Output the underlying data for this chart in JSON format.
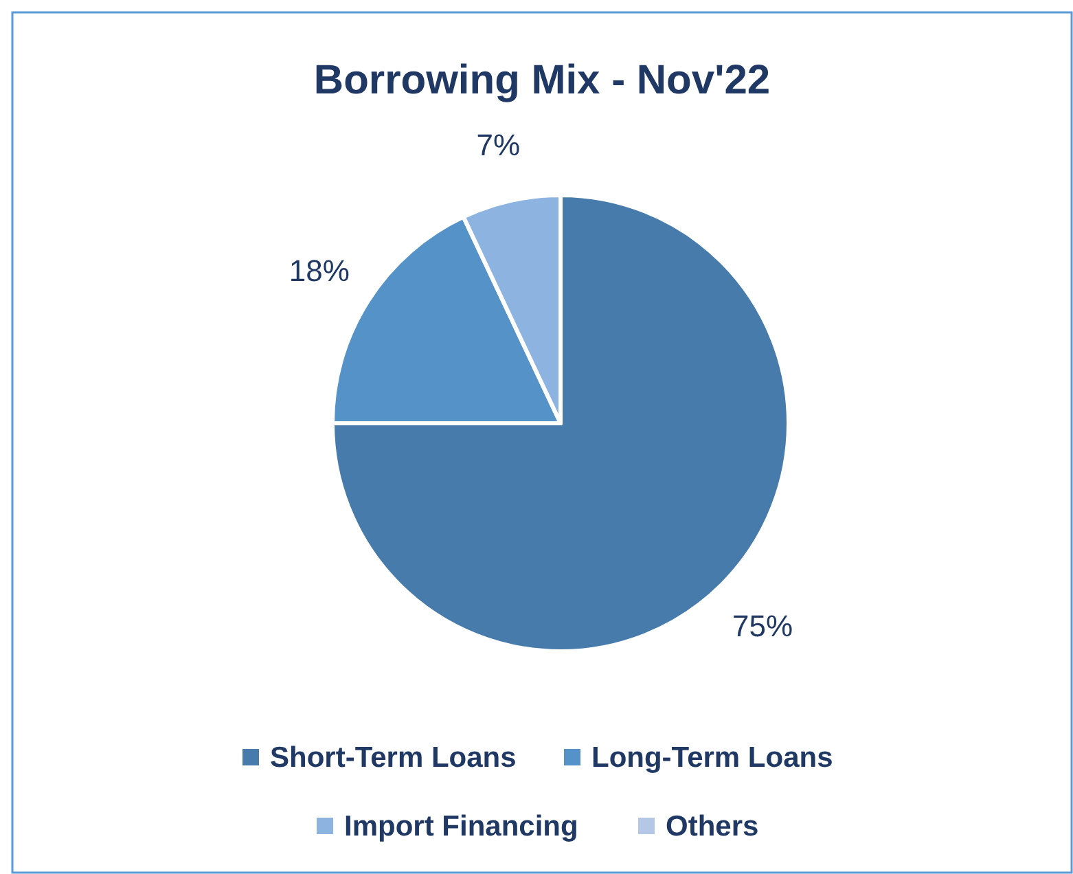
{
  "chart_data": {
    "type": "pie",
    "title": "Borrowing Mix - Nov'22",
    "categories": [
      "Short-Term Loans",
      "Long-Term Loans",
      "Import Financing",
      "Others"
    ],
    "values": [
      75,
      18,
      7,
      0
    ],
    "colors": [
      "#467bab",
      "#5592c8",
      "#8db3e0",
      "#b4c7e7"
    ],
    "value_labels": [
      "75%",
      "18%",
      "7%",
      null
    ],
    "legend": "bottom"
  }
}
